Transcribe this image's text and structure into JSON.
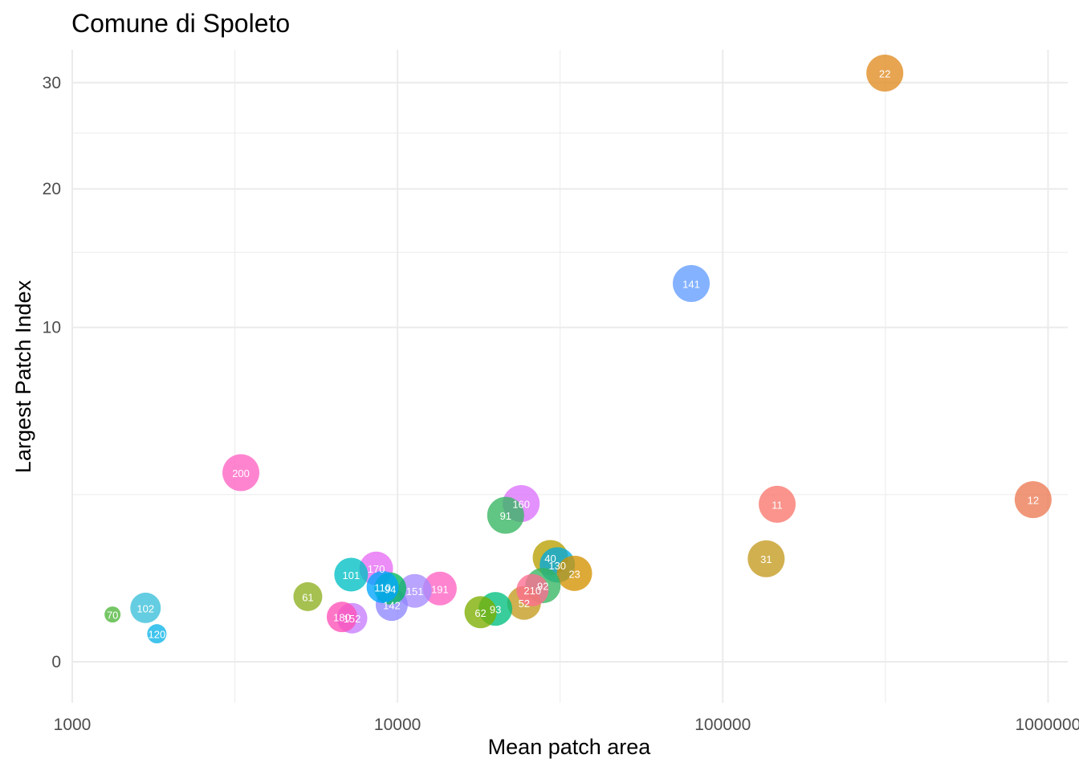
{
  "chart_data": {
    "type": "scatter",
    "title": "Comune di Spoleto",
    "xlabel": "Mean patch area",
    "ylabel": "Largest Patch Index",
    "x_scale": "log10",
    "y_scale": "sqrt",
    "xlim": [
      1000,
      1150000
    ],
    "ylim": [
      -0.15,
      33.5
    ],
    "x_ticks": [
      1000,
      10000,
      100000,
      1000000
    ],
    "x_tick_labels": [
      "1000",
      "10000",
      "100000",
      "1000000"
    ],
    "y_ticks": [
      0,
      10,
      20,
      30
    ],
    "y_tick_labels": [
      "0",
      "10",
      "20",
      "30"
    ],
    "y_minor_ticks": [
      2.5,
      15,
      25
    ],
    "grid": true,
    "legend": "none",
    "points": [
      {
        "label": "22",
        "x": 315000,
        "y": 31.0,
        "size": 23,
        "color": "#E08B20"
      },
      {
        "label": "141",
        "x": 80000,
        "y": 12.8,
        "size": 23,
        "color": "#619CFF"
      },
      {
        "label": "200",
        "x": 3300,
        "y": 3.2,
        "size": 23,
        "color": "#FF61C3"
      },
      {
        "label": "160",
        "x": 24000,
        "y": 2.24,
        "size": 23,
        "color": "#DB72FB"
      },
      {
        "label": "91",
        "x": 21500,
        "y": 1.92,
        "size": 23,
        "color": "#35B560"
      },
      {
        "label": "11",
        "x": 147000,
        "y": 2.22,
        "size": 23,
        "color": "#F8766D"
      },
      {
        "label": "12",
        "x": 900000,
        "y": 2.35,
        "size": 23,
        "color": "#EC7A53"
      },
      {
        "label": "31",
        "x": 136000,
        "y": 0.95,
        "size": 23,
        "color": "#C49A1D"
      },
      {
        "label": "40",
        "x": 29500,
        "y": 0.97,
        "size": 22,
        "color": "#B79F00"
      },
      {
        "label": "130",
        "x": 31000,
        "y": 0.84,
        "size": 22,
        "color": "#00A9E0"
      },
      {
        "label": "23",
        "x": 35000,
        "y": 0.7,
        "size": 22,
        "color": "#D39200"
      },
      {
        "label": "92",
        "x": 28000,
        "y": 0.52,
        "size": 22,
        "color": "#35B560"
      },
      {
        "label": "210",
        "x": 26000,
        "y": 0.46,
        "size": 20,
        "color": "#FF6C91"
      },
      {
        "label": "52",
        "x": 24500,
        "y": 0.31,
        "size": 21,
        "color": "#C49A1D"
      },
      {
        "label": "93",
        "x": 20000,
        "y": 0.25,
        "size": 21,
        "color": "#00BF7D"
      },
      {
        "label": "62",
        "x": 18000,
        "y": 0.22,
        "size": 20,
        "color": "#7CAE00"
      },
      {
        "label": "191",
        "x": 13500,
        "y": 0.48,
        "size": 21,
        "color": "#FF61C3"
      },
      {
        "label": "151",
        "x": 11300,
        "y": 0.45,
        "size": 21,
        "color": "#A58AFF"
      },
      {
        "label": "142",
        "x": 9600,
        "y": 0.29,
        "size": 20,
        "color": "#8E86FF"
      },
      {
        "label": "94",
        "x": 9500,
        "y": 0.48,
        "size": 20,
        "color": "#00B85C"
      },
      {
        "label": "110",
        "x": 9000,
        "y": 0.5,
        "size": 20,
        "color": "#00A5FF"
      },
      {
        "label": "170",
        "x": 8600,
        "y": 0.78,
        "size": 21,
        "color": "#E76BF3"
      },
      {
        "label": "101",
        "x": 7200,
        "y": 0.68,
        "size": 21,
        "color": "#00BFC4"
      },
      {
        "label": "152",
        "x": 7250,
        "y": 0.17,
        "size": 19,
        "color": "#C77CFF"
      },
      {
        "label": "180",
        "x": 6750,
        "y": 0.18,
        "size": 19,
        "color": "#FF4FB7"
      },
      {
        "label": "61",
        "x": 5300,
        "y": 0.38,
        "size": 18,
        "color": "#8DAF1F"
      },
      {
        "label": "102",
        "x": 1680,
        "y": 0.26,
        "size": 19,
        "color": "#39BFD8"
      },
      {
        "label": "120",
        "x": 1820,
        "y": 0.07,
        "size": 12,
        "color": "#0CB4E8"
      },
      {
        "label": "70",
        "x": 1330,
        "y": 0.2,
        "size": 10,
        "color": "#4EB63A"
      }
    ]
  }
}
